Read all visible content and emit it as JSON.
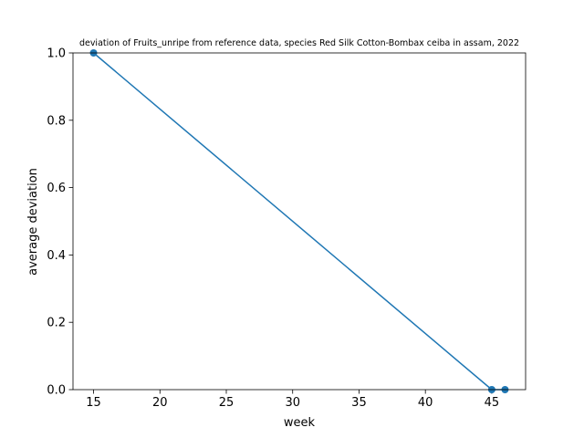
{
  "chart_data": {
    "type": "line",
    "title": "deviation of Fruits_unripe from reference data, species Red Silk Cotton-Bombax ceiba in assam, 2022",
    "xlabel": "week",
    "ylabel": "average deviation",
    "xlim": [
      13.45,
      47.55
    ],
    "ylim": [
      0,
      1.0
    ],
    "xticks": [
      "15",
      "20",
      "25",
      "30",
      "35",
      "40",
      "45"
    ],
    "yticks": [
      "0.0",
      "0.2",
      "0.4",
      "0.6",
      "0.8",
      "1.0"
    ],
    "grid": false,
    "legend": "none",
    "series": [
      {
        "x": [
          15,
          45,
          46
        ],
        "y": [
          1.0,
          0.0,
          0.0
        ],
        "color": "#1f77b4",
        "marker": "circle"
      }
    ]
  }
}
